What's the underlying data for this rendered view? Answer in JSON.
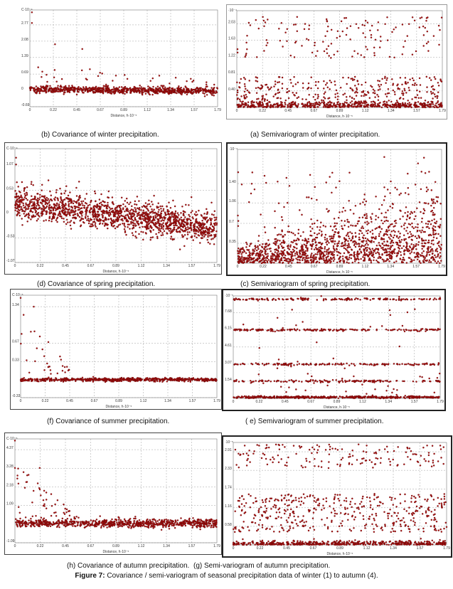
{
  "figure": {
    "label": "Figure 7:",
    "caption": " Covariance / semi-variogram of seasonal precipitation data of winter (1) to autumn (4)."
  },
  "chart_data": [
    {
      "id": "b",
      "type": "scatter",
      "kind": "covariance",
      "season": "winter",
      "caption": "(b) Covariance of winter precipitation.",
      "scale_label": "C·10⁻⁴",
      "xlabel": "Distance, h·10⁻⁵",
      "xlim": [
        0,
        1.79
      ],
      "ylim": [
        -0.69,
        3.4
      ],
      "xticks": [
        "0",
        "0.22",
        "0.45",
        "0.67",
        "0.89",
        "1.12",
        "1.34",
        "1.57",
        "1.79"
      ],
      "yticks": [
        "-0.69",
        "0",
        "0.69",
        "1.39",
        "2.08",
        "2.77"
      ],
      "color": "#b01010"
    },
    {
      "id": "a",
      "type": "scatter",
      "kind": "semivariogram",
      "season": "winter",
      "caption": "(a) Semivariogram of winter precipitation.",
      "scale_label": "·10⁻⁴",
      "xlabel": "Distance, h·10⁻⁵",
      "xlim": [
        0,
        1.79
      ],
      "ylim": [
        0,
        2.35
      ],
      "xticks": [
        "0",
        "0.22",
        "0.45",
        "0.67",
        "0.89",
        "1.12",
        "1.34",
        "1.57",
        "1.79"
      ],
      "yticks": [
        "0.40",
        "0.81",
        "1.22",
        "1.63",
        "2.03"
      ],
      "color": "#b01010"
    },
    {
      "id": "d",
      "type": "scatter",
      "kind": "covariance",
      "season": "spring",
      "caption": "(d) Covariance of spring precipitation.",
      "scale_label": "C·10⁻⁴",
      "xlabel": "Distance, h·10⁻⁵",
      "xlim": [
        0,
        1.79
      ],
      "ylim": [
        -1.07,
        1.45
      ],
      "xticks": [
        "0",
        "0.22",
        "0.45",
        "0.67",
        "0.89",
        "1.12",
        "1.34",
        "1.57",
        "1.79"
      ],
      "yticks": [
        "-1.07",
        "-0.53",
        "0",
        "0.53",
        "1.07"
      ],
      "color": "#b01010"
    },
    {
      "id": "c",
      "type": "scatter",
      "kind": "semivariogram",
      "season": "spring",
      "caption": "(c) Semivariogram of spring precipitation.",
      "scale_label": "·10⁻⁴",
      "xlabel": "Distance, h·10⁻⁵",
      "xlim": [
        0,
        1.79
      ],
      "ylim": [
        0,
        2.0
      ],
      "xticks": [
        "0",
        "0.22",
        "0.45",
        "0.67",
        "0.89",
        "1.12",
        "1.34",
        "1.57",
        "1.79"
      ],
      "yticks": [
        "0.35",
        "0.7",
        "1.06",
        "1.40"
      ],
      "color": "#b01010"
    },
    {
      "id": "f",
      "type": "scatter",
      "kind": "covariance",
      "season": "summer",
      "caption": "(f) Covariance of summer precipitation.",
      "scale_label": "C·10⁻⁵",
      "xlabel": "Distance, h·10⁻⁵",
      "xlim": [
        0,
        1.79
      ],
      "ylim": [
        -0.33,
        1.55
      ],
      "xticks": [
        "0",
        "0.22",
        "0.45",
        "0.67",
        "0.89",
        "1.12",
        "1.34",
        "1.57",
        "1.79"
      ],
      "yticks": [
        "-0.33",
        "0.33",
        "0.67",
        "1.34"
      ],
      "color": "#b01010"
    },
    {
      "id": "e",
      "type": "scatter",
      "kind": "semivariogram",
      "season": "summer",
      "caption": "( e) Semivariogram of summer precipitation.",
      "scale_label": "·10⁻⁵",
      "xlabel": "Distance, h·10⁻⁵",
      "xlim": [
        0,
        1.79
      ],
      "ylim": [
        0,
        9.2
      ],
      "xticks": [
        "0",
        "0.22",
        "0.45",
        "0.67",
        "0.89",
        "1.12",
        "1.34",
        "1.57",
        "1.79"
      ],
      "yticks": [
        "1.54",
        "3.07",
        "4.61",
        "6.15",
        "7.68"
      ],
      "color": "#b01010"
    },
    {
      "id": "h",
      "type": "scatter",
      "kind": "covariance",
      "season": "autumn",
      "caption": "(h) Covariance of autumn precipitation.",
      "scale_label": "C·10⁻⁵",
      "xlabel": "Distance, h·10⁻⁵",
      "xlim": [
        0,
        1.79
      ],
      "ylim": [
        -1.09,
        5.0
      ],
      "xticks": [
        "0",
        "0.22",
        "0.45",
        "0.67",
        "0.89",
        "1.12",
        "1.34",
        "1.57",
        "1.79"
      ],
      "yticks": [
        "-1.09",
        "1.09",
        "2.18",
        "3.28",
        "4.37"
      ],
      "color": "#b01010"
    },
    {
      "id": "g",
      "type": "scatter",
      "kind": "semivariogram",
      "season": "autumn",
      "caption": "(g) Semi-variogram of autumn precipitation.",
      "scale_label": "·10⁻⁵",
      "xlabel": "Distance, h·10⁻⁵",
      "xlim": [
        0,
        1.79
      ],
      "ylim": [
        0,
        3.2
      ],
      "xticks": [
        "0",
        "0.22",
        "0.45",
        "0.67",
        "0.89",
        "1.12",
        "1.34",
        "1.57",
        "1.79"
      ],
      "yticks": [
        "0.58",
        "1.16",
        "1.74",
        "2.33",
        "2.91"
      ],
      "color": "#b01010"
    }
  ]
}
